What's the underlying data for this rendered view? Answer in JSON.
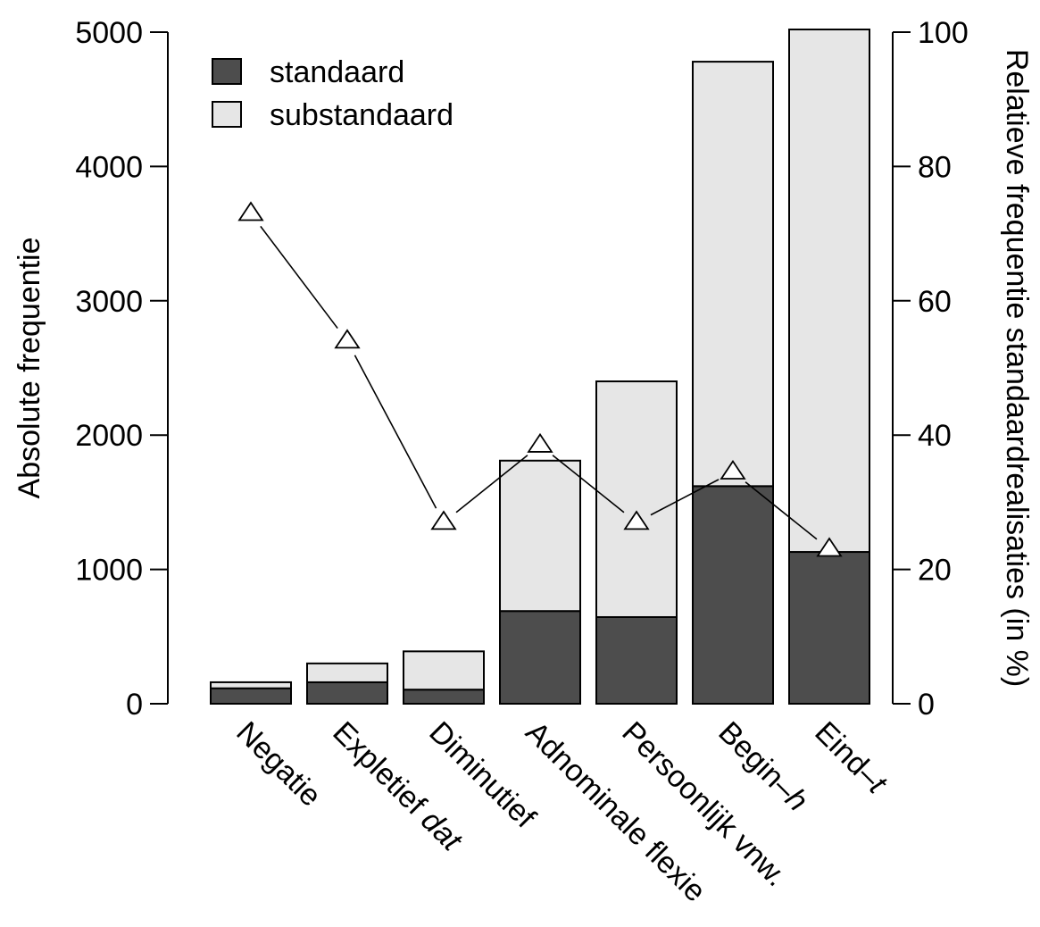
{
  "chart_data": {
    "type": "bar",
    "stacked": true,
    "categories": [
      "Negatie",
      "Expletief dat",
      "Diminutief",
      "Adnominale flexie",
      "Persoonlijk vnw.",
      "Begin–h",
      "Eind–t"
    ],
    "category_label_parts": [
      [
        {
          "text": "Negatie",
          "italic": false
        }
      ],
      [
        {
          "text": "Expletief ",
          "italic": false
        },
        {
          "text": "dat",
          "italic": true
        }
      ],
      [
        {
          "text": "Diminutief",
          "italic": false
        }
      ],
      [
        {
          "text": "Adnominale flexie",
          "italic": false
        }
      ],
      [
        {
          "text": "Persoonlijk vnw.",
          "italic": false
        }
      ],
      [
        {
          "text": "Begin–",
          "italic": false
        },
        {
          "text": "h",
          "italic": true
        }
      ],
      [
        {
          "text": "Eind–",
          "italic": false
        },
        {
          "text": "t",
          "italic": true
        }
      ]
    ],
    "series": [
      {
        "name": "standaard",
        "color": "#4d4d4d",
        "values": [
          115,
          160,
          105,
          690,
          645,
          1620,
          1130
        ]
      },
      {
        "name": "substandaard",
        "color": "#e6e6e6",
        "values": [
          45,
          140,
          285,
          1120,
          1755,
          3160,
          3890
        ]
      }
    ],
    "line_series": {
      "marker": "triangle-open",
      "values": [
        73,
        54,
        27,
        38.5,
        27,
        34.5,
        23
      ]
    },
    "ylabel_left": "Absolute frequentie",
    "ylabel_right": "Relatieve frequentie standaardrealisaties (in %)",
    "ylim_left": [
      0,
      5000
    ],
    "yticks_left": [
      0,
      1000,
      2000,
      3000,
      4000,
      5000
    ],
    "ylim_right": [
      0,
      100
    ],
    "yticks_right": [
      0,
      20,
      40,
      60,
      80,
      100
    ],
    "legend_position": "top-left",
    "grid": false
  }
}
